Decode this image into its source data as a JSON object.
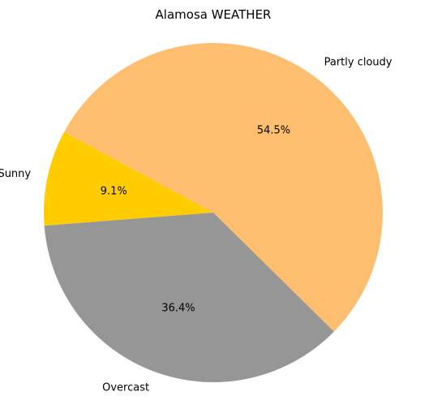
{
  "chart_data": {
    "type": "pie",
    "title": "Alamosa WEATHER",
    "slices": [
      {
        "label": "Partly cloudy",
        "value": 54.5,
        "pct_label": "54.5%",
        "color": "#fdbf6f"
      },
      {
        "label": "Sunny",
        "value": 9.1,
        "pct_label": "9.1%",
        "color": "#ffcc00"
      },
      {
        "label": "Overcast",
        "value": 36.4,
        "pct_label": "36.4%",
        "color": "#969696"
      }
    ],
    "legend": "none",
    "start_angle_deg": -44.55,
    "direction": "counterclockwise"
  }
}
